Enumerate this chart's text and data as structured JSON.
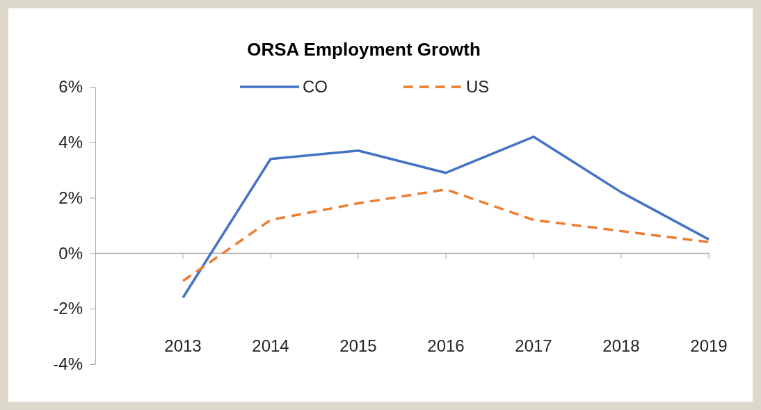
{
  "chart_data": {
    "type": "line",
    "title": "ORSA Employment Growth",
    "categories": [
      "2013",
      "2014",
      "2015",
      "2016",
      "2017",
      "2018",
      "2019"
    ],
    "series": [
      {
        "name": "CO",
        "color": "#4472c4",
        "line_style": "solid",
        "values": [
          -1.6,
          3.4,
          3.7,
          2.9,
          4.2,
          2.2,
          0.5
        ]
      },
      {
        "name": "US",
        "color": "#ed7d31",
        "line_style": "dashed",
        "values": [
          -1.0,
          1.2,
          1.8,
          2.3,
          1.2,
          0.8,
          0.4
        ]
      }
    ],
    "ylim": [
      -4,
      6
    ],
    "yticks": [
      {
        "value": -4,
        "label": "-4%"
      },
      {
        "value": -2,
        "label": "-2%"
      },
      {
        "value": 0,
        "label": "0%"
      },
      {
        "value": 2,
        "label": "2%"
      },
      {
        "value": 4,
        "label": "4%"
      },
      {
        "value": 6,
        "label": "6%"
      }
    ],
    "legend": "top",
    "marker": "none"
  }
}
